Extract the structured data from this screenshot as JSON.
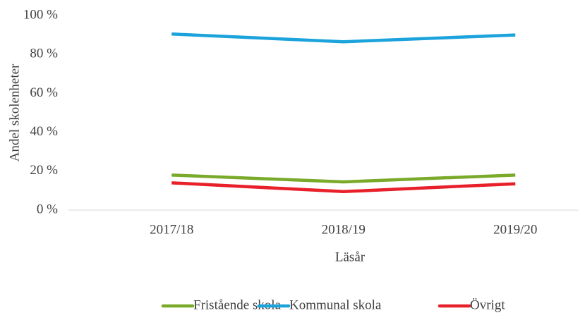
{
  "chart_data": {
    "type": "line",
    "categories": [
      "2017/18",
      "2018/19",
      "2019/20"
    ],
    "series": [
      {
        "name": "Fristående skola",
        "color": "#7aaa2a",
        "values": [
          18,
          14.5,
          18
        ]
      },
      {
        "name": "Kommunal skola",
        "color": "#1ca3dc",
        "values": [
          90.5,
          86.5,
          90
        ]
      },
      {
        "name": "Övrigt",
        "color": "#e8202a",
        "values": [
          14,
          9.5,
          13.5
        ]
      }
    ],
    "ylim": [
      0,
      100
    ],
    "yticks": [
      {
        "value": 0,
        "label": "0 %"
      },
      {
        "value": 20,
        "label": "20 %"
      },
      {
        "value": 40,
        "label": "40 %"
      },
      {
        "value": 60,
        "label": "60 %"
      },
      {
        "value": 80,
        "label": "80 %"
      },
      {
        "value": 100,
        "label": "100 %"
      }
    ],
    "xlabel": "Läsår",
    "ylabel": "Andel skolenheter",
    "legend": "bottom"
  }
}
